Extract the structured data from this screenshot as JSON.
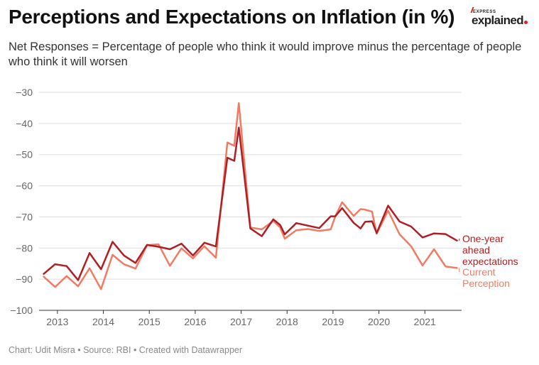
{
  "header": {
    "title": "Perceptions and Expectations on Inflation (in %)",
    "subtitle": "Net Responses = Percentage of people who think it would improve minus the percentage of people who think it will worsen",
    "brand_top": "EXPRESS",
    "brand_main": "explained"
  },
  "footer": {
    "credit": "Chart: Udit Misra • Source: RBI • Created with Datawrapper"
  },
  "colors": {
    "expectations": "#b01e23",
    "perception": "#f07b62",
    "grid": "#dddddd"
  },
  "chart_data": {
    "type": "line",
    "title": "Perceptions and Expectations on Inflation (in %)",
    "xlabel": "",
    "ylabel": "",
    "ylim": [
      -100,
      -30
    ],
    "yticks": [
      -30,
      -40,
      -50,
      -60,
      -70,
      -80,
      -90,
      -100
    ],
    "ytick_labels": [
      "−30",
      "−40",
      "−50",
      "−60",
      "−70",
      "−80",
      "−90",
      "−100"
    ],
    "xlim": [
      2012.6,
      2021.8
    ],
    "xticks": [
      2013,
      2014,
      2015,
      2016,
      2017,
      2018,
      2019,
      2020,
      2021
    ],
    "xtick_labels": [
      "2013",
      "2014",
      "2015",
      "2016",
      "2017",
      "2018",
      "2019",
      "2020",
      "2021"
    ],
    "grid": true,
    "legend": "direct labels at right end of lines",
    "series": [
      {
        "name": "One-year ahead expectations",
        "label_lines": [
          "One-year",
          "ahead",
          "expectations"
        ],
        "color": "#b01e23",
        "x": [
          2012.7,
          2012.95,
          2013.2,
          2013.45,
          2013.7,
          2013.95,
          2014.2,
          2014.45,
          2014.7,
          2014.95,
          2015.2,
          2015.45,
          2015.7,
          2015.95,
          2016.2,
          2016.45,
          2016.7,
          2016.85,
          2016.95,
          2017.2,
          2017.45,
          2017.7,
          2017.85,
          2017.95,
          2018.2,
          2018.45,
          2018.7,
          2018.95,
          2019.05,
          2019.2,
          2019.45,
          2019.6,
          2019.7,
          2019.85,
          2019.95,
          2020.2,
          2020.45,
          2020.7,
          2020.95,
          2021.2,
          2021.45,
          2021.7
        ],
        "y": [
          -88.3,
          -85.2,
          -85.8,
          -90.3,
          -81.6,
          -86.8,
          -78,
          -82.4,
          -84.8,
          -79,
          -79.6,
          -80.4,
          -78.6,
          -82.4,
          -78.3,
          -79.5,
          -51,
          -52,
          -41.3,
          -73.7,
          -76.2,
          -70.8,
          -72.6,
          -75.6,
          -72,
          -72.8,
          -73.6,
          -69.8,
          -69.8,
          -67.2,
          -71.9,
          -73.7,
          -71.6,
          -71.4,
          -75.2,
          -66.4,
          -71.5,
          -73.1,
          -76.6,
          -75.3,
          -75.5,
          -77.6
        ]
      },
      {
        "name": "Current Perception",
        "label_lines": [
          "Current",
          "Perception"
        ],
        "color": "#f07b62",
        "x": [
          2012.7,
          2012.95,
          2013.2,
          2013.45,
          2013.7,
          2013.95,
          2014.2,
          2014.45,
          2014.7,
          2014.95,
          2015.2,
          2015.45,
          2015.7,
          2015.95,
          2016.2,
          2016.45,
          2016.7,
          2016.85,
          2016.95,
          2017.2,
          2017.45,
          2017.7,
          2017.85,
          2017.95,
          2018.2,
          2018.45,
          2018.7,
          2018.95,
          2019.05,
          2019.2,
          2019.45,
          2019.6,
          2019.7,
          2019.85,
          2019.95,
          2020.2,
          2020.45,
          2020.7,
          2020.95,
          2021.2,
          2021.45,
          2021.7
        ],
        "y": [
          -89.2,
          -92.5,
          -89,
          -92.3,
          -86.5,
          -93.2,
          -82.2,
          -85.2,
          -86.6,
          -79.1,
          -78.8,
          -85.7,
          -80.1,
          -83.3,
          -79.4,
          -83.1,
          -46.1,
          -47.2,
          -33.5,
          -73.4,
          -74,
          -71.3,
          -73.4,
          -77,
          -74.3,
          -73.9,
          -74.5,
          -74,
          -69.8,
          -65.3,
          -69.7,
          -67.5,
          -67.7,
          -68.3,
          -75.4,
          -68,
          -75.6,
          -79.4,
          -85.6,
          -80.4,
          -85.9,
          -86.4
        ]
      }
    ]
  }
}
